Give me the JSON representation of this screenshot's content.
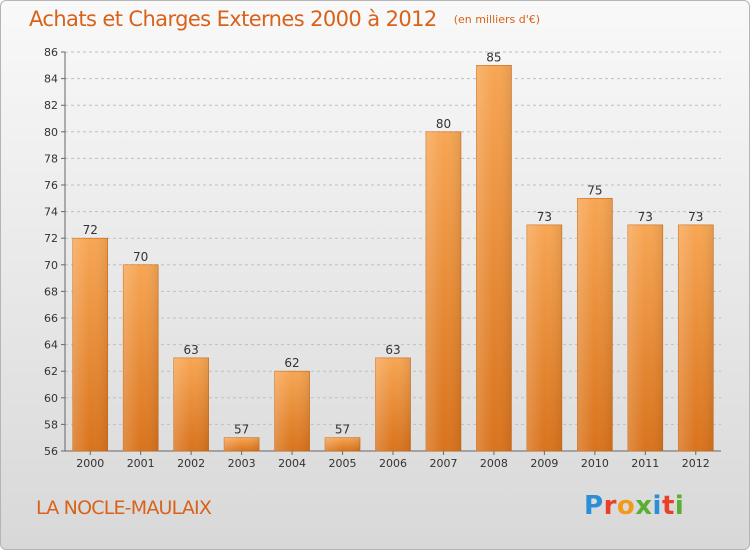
{
  "header": {
    "title": "Achats et Charges Externes 2000 à 2012",
    "unit": "(en milliers d'€)"
  },
  "footer": {
    "commune": "LA NOCLE-MAULAIX",
    "logo": "Proxiti",
    "logo_colors": [
      "#2a8fd6",
      "#e8402b",
      "#f29a1a",
      "#5aae32",
      "#2a8fd6",
      "#e8402b",
      "#5aae32"
    ]
  },
  "colors": {
    "bar_light": "#f7a654",
    "bar_dark": "#d9731c",
    "title": "#d9621a",
    "grid": "#bfbfbf"
  },
  "chart_data": {
    "type": "bar",
    "categories": [
      "2000",
      "2001",
      "2002",
      "2003",
      "2004",
      "2005",
      "2006",
      "2007",
      "2008",
      "2009",
      "2010",
      "2011",
      "2012"
    ],
    "values": [
      72,
      70,
      63,
      57,
      62,
      57,
      63,
      80,
      85,
      73,
      75,
      73,
      73
    ],
    "data_labels": [
      "72",
      "70",
      "63",
      "57",
      "62",
      "57",
      "63",
      "80",
      "85",
      "73",
      "75",
      "73",
      "73"
    ],
    "y_ticks": [
      56,
      58,
      60,
      62,
      64,
      66,
      68,
      70,
      72,
      74,
      76,
      78,
      80,
      82,
      84,
      86
    ],
    "ylim": [
      56,
      86
    ],
    "grid": true,
    "legend": "none"
  }
}
